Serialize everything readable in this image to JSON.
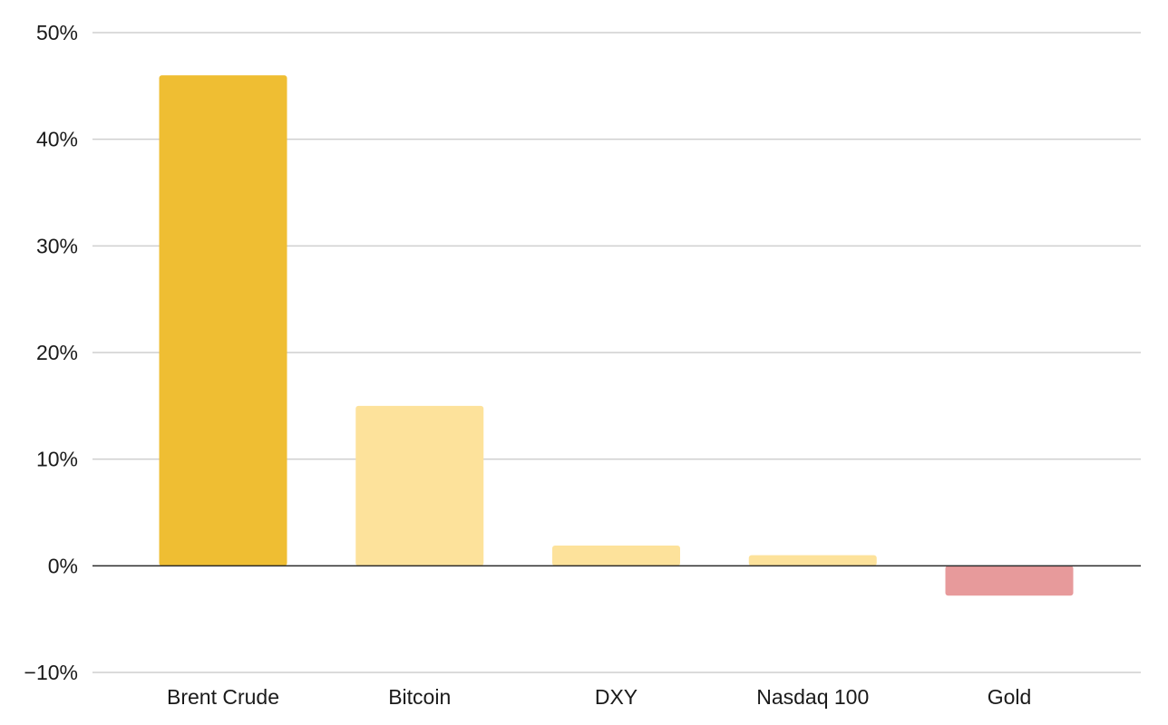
{
  "chart_data": {
    "type": "bar",
    "categories": [
      "Brent Crude",
      "Bitcoin",
      "DXY",
      "Nasdaq 100",
      "Gold"
    ],
    "values": [
      46,
      15,
      1.9,
      1.0,
      -2.8
    ],
    "bar_colors": [
      "#EFBE33",
      "#FDE29B",
      "#FDE29B",
      "#FDE29B",
      "#E79A9B"
    ],
    "ylim": [
      -10,
      50
    ],
    "yticks": [
      50,
      40,
      30,
      20,
      10,
      0,
      -10
    ],
    "ytick_labels": [
      "50%",
      "40%",
      "30%",
      "20%",
      "10%",
      "0%",
      "−10%"
    ],
    "grid": true,
    "gridline_color": "#cfcfcf",
    "zero_line_color": "#2a2a2a",
    "title": "",
    "xlabel": "",
    "ylabel": ""
  }
}
